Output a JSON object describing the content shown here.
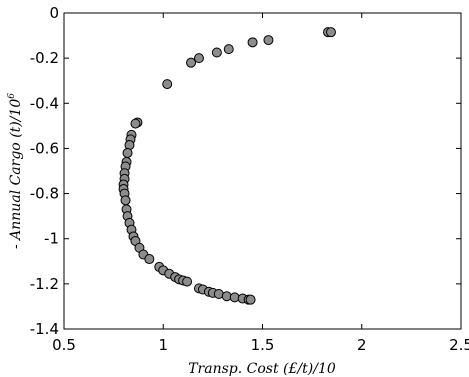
{
  "chart_data": {
    "type": "scatter",
    "xlabel": "Transp. Cost (£/t)/10",
    "ylabel_main": "- Annual Cargo (t)/10",
    "ylabel_sup": "6",
    "xlim": [
      0.5,
      2.5
    ],
    "ylim": [
      -1.4,
      0
    ],
    "xticks": [
      0.5,
      1,
      1.5,
      2,
      2.5
    ],
    "xtick_labels": [
      "0.5",
      "1",
      "1.5",
      "2",
      "2.5"
    ],
    "yticks": [
      0,
      -0.2,
      -0.4,
      -0.6,
      -0.8,
      -1,
      -1.2,
      -1.4
    ],
    "ytick_labels": [
      "0",
      "-0.2",
      "-0.4",
      "-0.6",
      "-0.8",
      "-1",
      "-1.2",
      "-1.4"
    ],
    "grid": false,
    "marker_color": "#8c8c8c",
    "marker_edge_color": "#000000",
    "points": [
      [
        1.83,
        -0.085
      ],
      [
        1.845,
        -0.085
      ],
      [
        1.53,
        -0.12
      ],
      [
        1.45,
        -0.13
      ],
      [
        1.33,
        -0.16
      ],
      [
        1.27,
        -0.175
      ],
      [
        1.18,
        -0.2
      ],
      [
        1.14,
        -0.22
      ],
      [
        1.02,
        -0.315
      ],
      [
        0.87,
        -0.485
      ],
      [
        0.86,
        -0.49
      ],
      [
        0.84,
        -0.54
      ],
      [
        0.835,
        -0.56
      ],
      [
        0.83,
        -0.585
      ],
      [
        0.82,
        -0.62
      ],
      [
        0.815,
        -0.66
      ],
      [
        0.81,
        -0.68
      ],
      [
        0.805,
        -0.71
      ],
      [
        0.805,
        -0.735
      ],
      [
        0.8,
        -0.76
      ],
      [
        0.8,
        -0.78
      ],
      [
        0.805,
        -0.8
      ],
      [
        0.81,
        -0.83
      ],
      [
        0.815,
        -0.87
      ],
      [
        0.82,
        -0.9
      ],
      [
        0.83,
        -0.93
      ],
      [
        0.84,
        -0.96
      ],
      [
        0.85,
        -0.99
      ],
      [
        0.86,
        -1.01
      ],
      [
        0.88,
        -1.04
      ],
      [
        0.9,
        -1.07
      ],
      [
        0.93,
        -1.09
      ],
      [
        0.98,
        -1.125
      ],
      [
        1.0,
        -1.14
      ],
      [
        1.03,
        -1.155
      ],
      [
        1.06,
        -1.17
      ],
      [
        1.08,
        -1.18
      ],
      [
        1.1,
        -1.185
      ],
      [
        1.12,
        -1.19
      ],
      [
        1.18,
        -1.22
      ],
      [
        1.2,
        -1.225
      ],
      [
        1.23,
        -1.235
      ],
      [
        1.25,
        -1.24
      ],
      [
        1.28,
        -1.245
      ],
      [
        1.32,
        -1.255
      ],
      [
        1.36,
        -1.26
      ],
      [
        1.4,
        -1.265
      ],
      [
        1.43,
        -1.27
      ],
      [
        1.44,
        -1.27
      ]
    ]
  }
}
